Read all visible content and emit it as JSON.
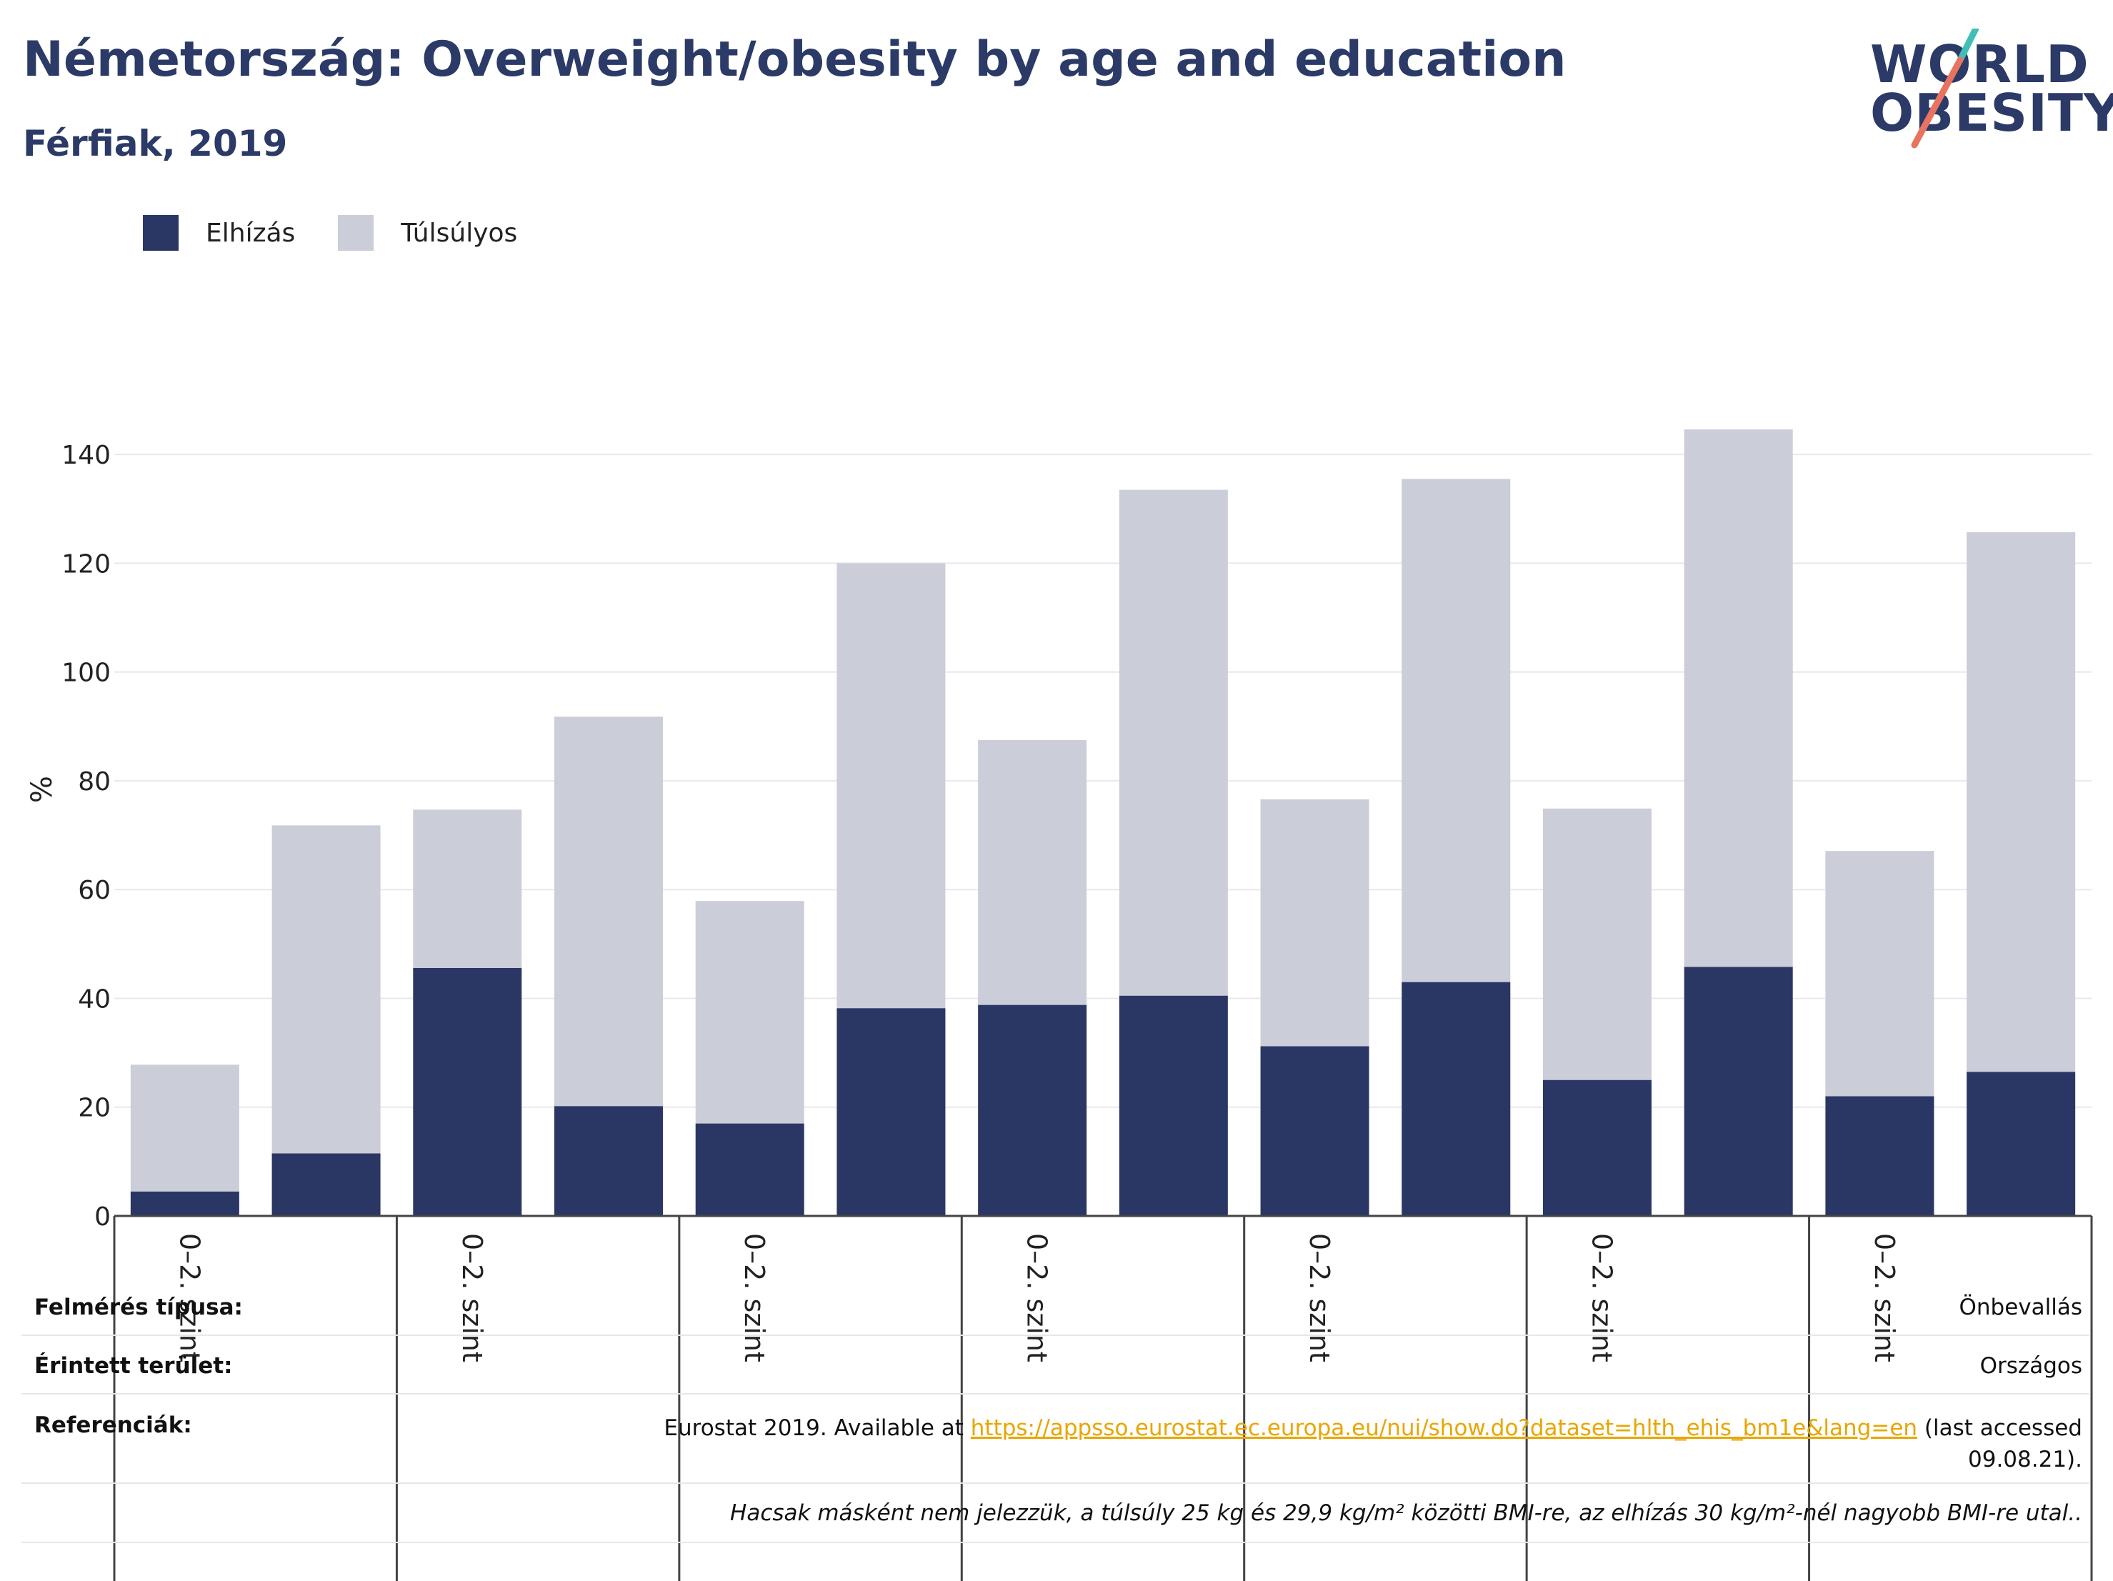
{
  "title": "Németország: Overweight/obesity by age and education",
  "subtitle": "Férfiak, 2019",
  "logo": {
    "line1": "WORLD",
    "line2": "OBESITY"
  },
  "colors": {
    "obesity": "#2a3764",
    "overweight": "#cbcdd9",
    "title": "#2b3a67",
    "link": "#e8a600",
    "grid": "#e8e8ee"
  },
  "legend": [
    {
      "label": "Elhízás",
      "color": "#2a3764"
    },
    {
      "label": "Túlsúlyos",
      "color": "#cbcdd9"
    }
  ],
  "chart_data": {
    "type": "bar",
    "stacked": true,
    "ylabel": "%",
    "ylim": [
      0,
      150
    ],
    "yticks": [
      0,
      20,
      40,
      60,
      80,
      100,
      120,
      140
    ],
    "grid": true,
    "group_label": "0–2. szint",
    "groups": 7,
    "bars_per_group": 2,
    "series": [
      {
        "name": "Elhízás",
        "values": [
          4.5,
          11.5,
          45.6,
          20.2,
          17.0,
          38.2,
          38.8,
          40.5,
          31.2,
          43.0,
          25.0,
          45.8,
          22.0,
          26.5
        ]
      },
      {
        "name": "Túlsúlyos",
        "values": [
          23.3,
          60.3,
          29.1,
          71.6,
          40.9,
          81.8,
          48.7,
          93.0,
          45.4,
          92.5,
          49.9,
          98.8,
          45.1,
          99.2
        ]
      }
    ]
  },
  "meta": {
    "survey_type_label": "Felmérés típusa:",
    "survey_type_value": "Önbevallás",
    "area_label": "Érintett terület:",
    "area_value": "Országos",
    "references_label": "Referenciák:",
    "ref_text_before": "Eurostat 2019. Available at ",
    "ref_link": "https://appsso.eurostat.ec.europa.eu/nui/show.do?dataset=hlth_ehis_bm1e&lang=en",
    "ref_text_after": " (last accessed",
    "ref_date": "09.08.21).",
    "note": "Hacsak másként nem jelezzük, a túlsúly 25 kg és 29,9 kg/m² közötti BMI-re, az elhízás 30 kg/m²-nél nagyobb BMI-re utal.."
  }
}
